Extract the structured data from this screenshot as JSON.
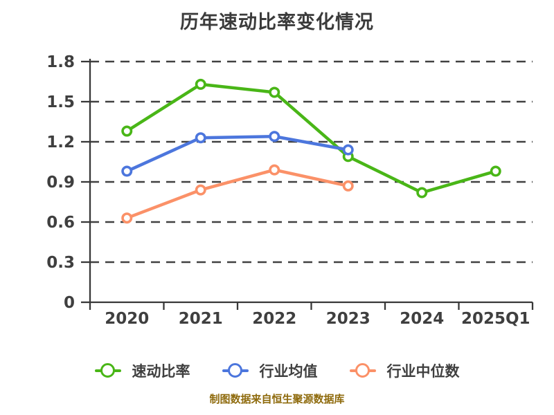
{
  "page": {
    "background": "#ffffff"
  },
  "header": {
    "title": "历年速动比率变化情况",
    "title_color": "#3b3b3b"
  },
  "footer": {
    "caption": "制图数据来自恒生聚源数据库",
    "caption_color": "#8e6a0c"
  },
  "chart_data": {
    "type": "line",
    "title": "历年速动比率变化情况",
    "categories": [
      "2020",
      "2021",
      "2022",
      "2023",
      "2024",
      "2025Q1"
    ],
    "series": [
      {
        "name": "速动比率",
        "color": "#49b617",
        "values": [
          1.28,
          1.63,
          1.57,
          1.09,
          0.82,
          0.98
        ]
      },
      {
        "name": "行业均值",
        "color": "#4c76dd",
        "values": [
          0.98,
          1.23,
          1.24,
          1.14,
          null,
          null
        ]
      },
      {
        "name": "行业中位数",
        "color": "#fb9168",
        "values": [
          0.63,
          0.84,
          0.99,
          0.87,
          null,
          null
        ]
      }
    ],
    "xlabel": "",
    "ylabel": "",
    "ylim": [
      0,
      1.8
    ],
    "ytick_step": 0.3,
    "ytick_labels": [
      "0",
      "0.3",
      "0.6",
      "0.9",
      "1.2",
      "1.5",
      "1.8"
    ],
    "grid": "horizontal-dashed",
    "legend_position": "bottom",
    "marker_style": "circle-white-fill",
    "axis_color": "#383838",
    "grid_color": "#414141",
    "label_color": "#3f3f3f"
  }
}
